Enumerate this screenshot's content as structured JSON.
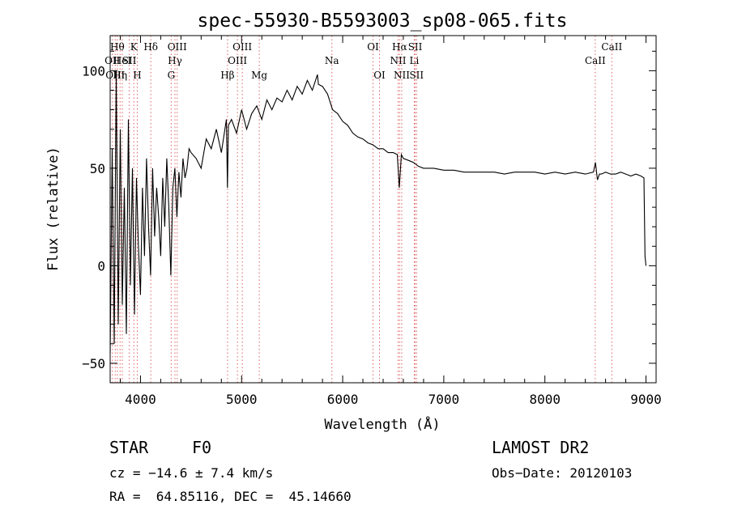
{
  "chart_data": {
    "type": "line",
    "title": "spec-55930-B5593003_sp08-065.fits",
    "xlabel": "Wavelength (Å)",
    "ylabel": "Flux (relative)",
    "xlim": [
      3700,
      9100
    ],
    "ylim": [
      -60,
      118
    ],
    "x_ticks": [
      4000,
      5000,
      6000,
      7000,
      8000,
      9000
    ],
    "y_ticks": [
      -50,
      0,
      50,
      100
    ],
    "grid": false,
    "legend": "none",
    "series": [
      {
        "x": [
          3700,
          3720,
          3740,
          3760,
          3780,
          3800,
          3820,
          3840,
          3860,
          3880,
          3900,
          3920,
          3940,
          3960,
          3980,
          4000,
          4020,
          4040,
          4060,
          4080,
          4100,
          4120,
          4140,
          4160,
          4180,
          4200,
          4220,
          4240,
          4260,
          4280,
          4300,
          4320,
          4340,
          4360,
          4380,
          4400,
          4420,
          4440,
          4460,
          4480,
          4500,
          4550,
          4600,
          4650,
          4700,
          4750,
          4800,
          4850,
          4860,
          4870,
          4900,
          4950,
          5000,
          5050,
          5100,
          5150,
          5200,
          5250,
          5300,
          5350,
          5400,
          5450,
          5500,
          5550,
          5600,
          5650,
          5700,
          5750,
          5760,
          5800,
          5850,
          5900,
          5950,
          6000,
          6050,
          6100,
          6150,
          6200,
          6250,
          6300,
          6350,
          6400,
          6450,
          6500,
          6540,
          6560,
          6580,
          6600,
          6650,
          6700,
          6750,
          6800,
          6900,
          7000,
          7100,
          7200,
          7300,
          7400,
          7500,
          7600,
          7700,
          7800,
          7900,
          8000,
          8100,
          8200,
          8300,
          8400,
          8480,
          8500,
          8520,
          8540,
          8560,
          8600,
          8650,
          8700,
          8750,
          8800,
          8850,
          8900,
          8950,
          8980,
          8990,
          9000
        ],
        "y": [
          -45,
          60,
          -40,
          100,
          -30,
          70,
          -20,
          40,
          -35,
          75,
          -10,
          50,
          -25,
          45,
          10,
          -15,
          40,
          5,
          55,
          20,
          -5,
          50,
          15,
          40,
          25,
          5,
          45,
          20,
          55,
          30,
          -5,
          40,
          50,
          25,
          48,
          35,
          55,
          45,
          50,
          60,
          58,
          55,
          50,
          65,
          60,
          70,
          58,
          75,
          40,
          72,
          75,
          68,
          80,
          70,
          78,
          82,
          75,
          85,
          80,
          86,
          84,
          90,
          85,
          92,
          88,
          95,
          90,
          98,
          93,
          92,
          88,
          80,
          78,
          74,
          72,
          68,
          66,
          65,
          63,
          62,
          60,
          60,
          58,
          58,
          57,
          40,
          57,
          55,
          54,
          53,
          51,
          50,
          50,
          49,
          49,
          48,
          48,
          48,
          48,
          47,
          48,
          48,
          48,
          47,
          48,
          47,
          48,
          47,
          48,
          53,
          44,
          47,
          47,
          48,
          47,
          47,
          48,
          47,
          46,
          47,
          46,
          45,
          5,
          0
        ]
      }
    ],
    "lines": [
      {
        "x": 3722,
        "label": "OII",
        "row": 2
      },
      {
        "x": 3750,
        "label": "OIII",
        "row": 3
      },
      {
        "x": 3771,
        "label": "Hθ",
        "row": 1
      },
      {
        "x": 3798,
        "label": "Hη",
        "row": 3
      },
      {
        "x": 3820,
        "label": "HeI",
        "row": 2
      },
      {
        "x": 3889,
        "label": "SII",
        "row": 2
      },
      {
        "x": 3934,
        "label": "K",
        "row": 1
      },
      {
        "x": 3968,
        "label": "H",
        "row": 3
      },
      {
        "x": 4102,
        "label": "Hδ",
        "row": 1
      },
      {
        "x": 4304,
        "label": "G",
        "row": 3
      },
      {
        "x": 4341,
        "label": "Hγ",
        "row": 2
      },
      {
        "x": 4363,
        "label": "OIII",
        "row": 1
      },
      {
        "x": 4861,
        "label": "Hβ",
        "row": 3
      },
      {
        "x": 4959,
        "label": "OIII",
        "row": 2
      },
      {
        "x": 5007,
        "label": "OIII",
        "row": 1
      },
      {
        "x": 5175,
        "label": "Mg",
        "row": 3
      },
      {
        "x": 5893,
        "label": "Na",
        "row": 2
      },
      {
        "x": 6300,
        "label": "OI",
        "row": 1
      },
      {
        "x": 6364,
        "label": "OI",
        "row": 3
      },
      {
        "x": 6548,
        "label": "NII",
        "row": 2
      },
      {
        "x": 6563,
        "label": "Hα",
        "row": 1
      },
      {
        "x": 6584,
        "label": "NII",
        "row": 3
      },
      {
        "x": 6708,
        "label": "Li",
        "row": 2
      },
      {
        "x": 6717,
        "label": "SII",
        "row": 1
      },
      {
        "x": 6731,
        "label": "SII",
        "row": 3
      },
      {
        "x": 8498,
        "label": "CaII",
        "row": 2
      },
      {
        "x": 8662,
        "label": "CaII",
        "row": 1
      }
    ]
  },
  "info": {
    "object_class": "STAR",
    "subclass": "F0",
    "survey": "LAMOST DR2",
    "redshift": "cz = −14.6 ± 7.4 km/s",
    "obs_date": "Obs−Date: 20120103",
    "coords": "RA =  64.85116, DEC =  45.14660"
  },
  "colors": {
    "spectrum": "#000000",
    "marker_lines": "#e06060",
    "axes": "#000000"
  }
}
